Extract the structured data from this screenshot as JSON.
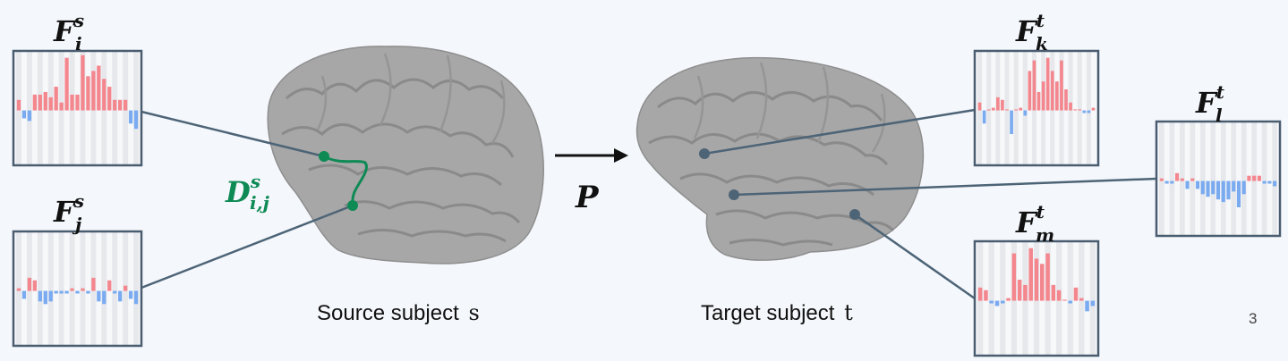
{
  "colors": {
    "positive_bar": "#f4868e",
    "negative_bar": "#7aaaf0",
    "panel_border": "#4a5d70",
    "panel_fill": "#f7f8fa",
    "panel_stripe": "#e6e8ec",
    "connector": "#4d6477",
    "geodesic": "#0e8a55",
    "brain_fill": "#a7a7a7",
    "arrow": "#111111"
  },
  "labels": {
    "source_caption": "Source subject",
    "source_symbol": "s",
    "target_caption": "Target subject",
    "target_symbol": "t",
    "mapping_symbol": "P",
    "distance_symbol": "D",
    "distance_sup": "s",
    "distance_sub": "i,j",
    "page_number": "3"
  },
  "panels": [
    {
      "id": "Fsi",
      "base": "F",
      "sup": "s",
      "sub": "i",
      "values": [
        0.2,
        -0.15,
        -0.2,
        0.3,
        0.3,
        0.35,
        0.25,
        0.45,
        0.15,
        1.0,
        0.3,
        0.3,
        1.05,
        0.65,
        0.75,
        0.85,
        0.6,
        0.45,
        0.2,
        0.2,
        0.2,
        -0.25,
        -0.35
      ]
    },
    {
      "id": "Fsj",
      "base": "F",
      "sup": "s",
      "sub": "j",
      "values": [
        0.05,
        -0.15,
        0.25,
        0.2,
        -0.2,
        -0.25,
        -0.2,
        -0.05,
        -0.05,
        -0.05,
        0.05,
        -0.05,
        0.05,
        -0.05,
        0.25,
        -0.2,
        -0.25,
        0.2,
        -0.05,
        -0.2,
        0.1,
        -0.15,
        -0.25
      ]
    },
    {
      "id": "Ftk",
      "base": "F",
      "sup": "t",
      "sub": "k",
      "values": [
        0.15,
        -0.25,
        0,
        0.05,
        0.25,
        0.2,
        0,
        -0.45,
        0,
        0.05,
        -0.1,
        0.75,
        0.95,
        0.35,
        0.55,
        1.0,
        0.75,
        0.55,
        0.95,
        0.4,
        0.15,
        0,
        0,
        -0.05,
        -0.05,
        0.05
      ]
    },
    {
      "id": "Ftl",
      "base": "F",
      "sup": "t",
      "sub": "l",
      "values": [
        0.05,
        -0.05,
        -0.05,
        0.15,
        0.05,
        -0.15,
        0.05,
        -0.15,
        -0.25,
        -0.3,
        -0.25,
        -0.35,
        -0.4,
        -0.35,
        -0.2,
        -0.5,
        -0.25,
        0.1,
        0.1,
        0.1,
        -0.05,
        -0.05,
        -0.1
      ]
    },
    {
      "id": "Ftm",
      "base": "F",
      "sup": "t",
      "sub": "m",
      "values": [
        0.25,
        0.2,
        -0.05,
        -0.1,
        -0.05,
        0.05,
        0.9,
        0.4,
        0.3,
        1.0,
        0.8,
        0.7,
        0.9,
        0.3,
        0.2,
        0,
        -0.05,
        0.25,
        0.05,
        -0.2,
        -0.1
      ]
    }
  ]
}
